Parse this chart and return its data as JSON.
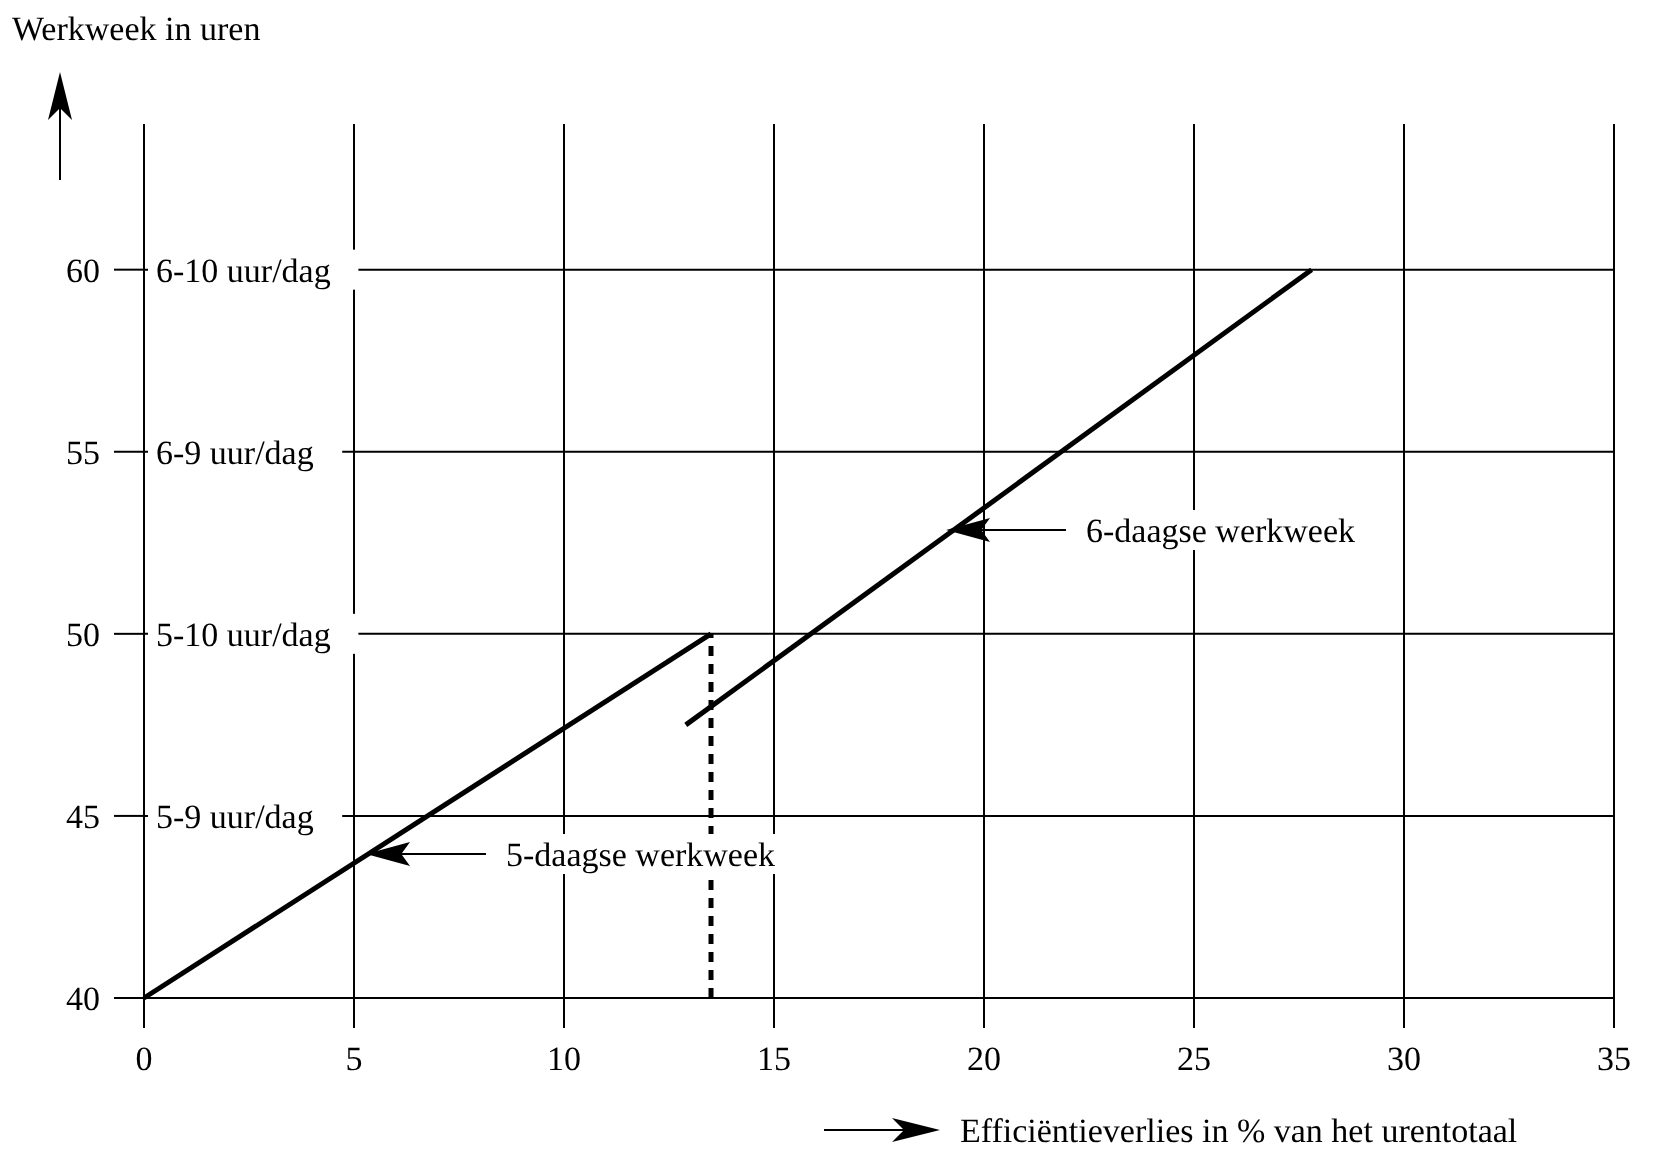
{
  "chart_data": {
    "type": "line",
    "xlabel": "Efficiëntieverlies in % van het urentotaal",
    "ylabel": "Werkweek in uren",
    "xlim": [
      0,
      35
    ],
    "ylim": [
      40,
      64
    ],
    "xticks": [
      0,
      5,
      10,
      15,
      20,
      25,
      30,
      35
    ],
    "yticks": [
      40,
      45,
      50,
      55,
      60
    ],
    "grid": "x",
    "series": [
      {
        "color": "#000000",
        "x": [
          0,
          13.5
        ],
        "values": [
          40,
          50
        ],
        "line_style": "solid"
      },
      {
        "color": "#000000",
        "x": [
          12.9,
          27.8
        ],
        "values": [
          47.5,
          60
        ],
        "line_style": "solid"
      },
      {
        "color": "#000000",
        "x": [
          13.5,
          13.5
        ],
        "values": [
          40,
          50
        ],
        "line_style": "dashed"
      }
    ],
    "ref_lines": [
      {
        "axis": "y",
        "value": 45,
        "label": "5-9 uur/dag"
      },
      {
        "axis": "y",
        "value": 50,
        "label": "5-10 uur/dag"
      },
      {
        "axis": "y",
        "value": 55,
        "label": "6-9 uur/dag"
      },
      {
        "axis": "y",
        "value": 60,
        "label": "6-10 uur/dag"
      }
    ],
    "annotations": [
      "5-daagse werkweek",
      "6-daagse werkweek"
    ]
  }
}
